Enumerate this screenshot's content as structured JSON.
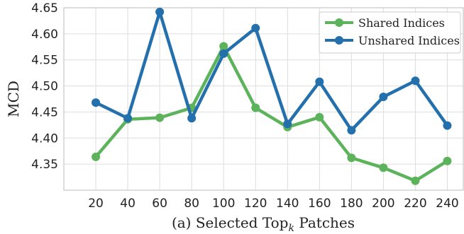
{
  "chart_data": {
    "type": "line",
    "x": [
      20,
      40,
      60,
      80,
      100,
      120,
      140,
      160,
      180,
      200,
      220,
      240
    ],
    "x_ticks": [
      "20",
      "40",
      "60",
      "80",
      "100",
      "120",
      "140",
      "160",
      "180",
      "200",
      "220",
      "240"
    ],
    "xlim": [
      0,
      250
    ],
    "ylim": [
      4.3,
      4.65
    ],
    "y_ticks": [
      "4.35",
      "4.40",
      "4.45",
      "4.50",
      "4.55",
      "4.60",
      "4.65"
    ],
    "y_tick_values": [
      4.35,
      4.4,
      4.45,
      4.5,
      4.55,
      4.6,
      4.65
    ],
    "ylabel": "MCD",
    "xlabel_prefix": "(a) Selected Top",
    "xlabel_subscript": "k",
    "xlabel_suffix": " Patches",
    "grid": true,
    "legend_position": "top-right",
    "series": [
      {
        "name": "Shared Indices",
        "color": "#5cb35c",
        "values": [
          4.364,
          4.436,
          4.439,
          4.458,
          4.576,
          4.458,
          4.421,
          4.44,
          4.362,
          4.343,
          4.318,
          4.356
        ]
      },
      {
        "name": "Unshared Indices",
        "color": "#2470ad",
        "values": [
          4.468,
          4.438,
          4.642,
          4.438,
          4.562,
          4.611,
          4.427,
          4.508,
          4.415,
          4.479,
          4.51,
          4.424
        ]
      }
    ]
  }
}
